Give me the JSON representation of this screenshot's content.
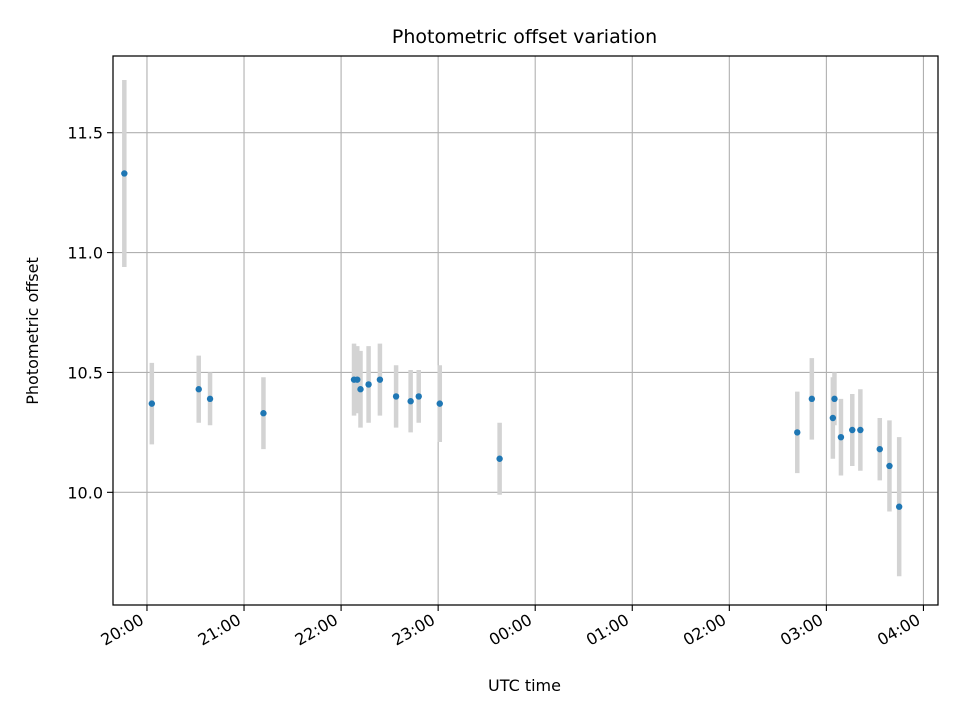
{
  "chart_data": {
    "type": "scatter",
    "title": "Photometric offset variation",
    "xlabel": "UTC time",
    "ylabel": "Photometric offset",
    "x_ticks": [
      "20:00",
      "21:00",
      "22:00",
      "23:00",
      "00:00",
      "01:00",
      "02:00",
      "03:00",
      "04:00"
    ],
    "y_ticks": [
      10.0,
      10.5,
      11.0,
      11.5
    ],
    "y_tick_labels": [
      "10.0",
      "10.5",
      "11.0",
      "11.5"
    ],
    "xlim": [
      "19:39",
      "04:09"
    ],
    "ylim": [
      9.53,
      11.82
    ],
    "grid": true,
    "marker_color": "#1f77b4",
    "errorbar_color": "#d3d3d3",
    "points": [
      {
        "x": "19:46",
        "y": 11.33,
        "err": 0.39
      },
      {
        "x": "20:03",
        "y": 10.37,
        "err": 0.17
      },
      {
        "x": "20:32",
        "y": 10.43,
        "err": 0.14
      },
      {
        "x": "20:39",
        "y": 10.39,
        "err": 0.11
      },
      {
        "x": "21:12",
        "y": 10.33,
        "err": 0.15
      },
      {
        "x": "22:08",
        "y": 10.47,
        "err": 0.15
      },
      {
        "x": "22:10",
        "y": 10.47,
        "err": 0.14
      },
      {
        "x": "22:12",
        "y": 10.43,
        "err": 0.16
      },
      {
        "x": "22:17",
        "y": 10.45,
        "err": 0.16
      },
      {
        "x": "22:24",
        "y": 10.47,
        "err": 0.15
      },
      {
        "x": "22:34",
        "y": 10.4,
        "err": 0.13
      },
      {
        "x": "22:43",
        "y": 10.38,
        "err": 0.13
      },
      {
        "x": "22:48",
        "y": 10.4,
        "err": 0.11
      },
      {
        "x": "23:01",
        "y": 10.37,
        "err": 0.16
      },
      {
        "x": "23:38",
        "y": 10.14,
        "err": 0.15
      },
      {
        "x": "02:42",
        "y": 10.25,
        "err": 0.17
      },
      {
        "x": "02:51",
        "y": 10.39,
        "err": 0.17
      },
      {
        "x": "03:04",
        "y": 10.31,
        "err": 0.17
      },
      {
        "x": "03:05",
        "y": 10.39,
        "err": 0.11
      },
      {
        "x": "03:09",
        "y": 10.23,
        "err": 0.16
      },
      {
        "x": "03:16",
        "y": 10.26,
        "err": 0.15
      },
      {
        "x": "03:21",
        "y": 10.26,
        "err": 0.17
      },
      {
        "x": "03:33",
        "y": 10.18,
        "err": 0.13
      },
      {
        "x": "03:39",
        "y": 10.11,
        "err": 0.19
      },
      {
        "x": "03:45",
        "y": 9.94,
        "err": 0.29
      }
    ]
  }
}
